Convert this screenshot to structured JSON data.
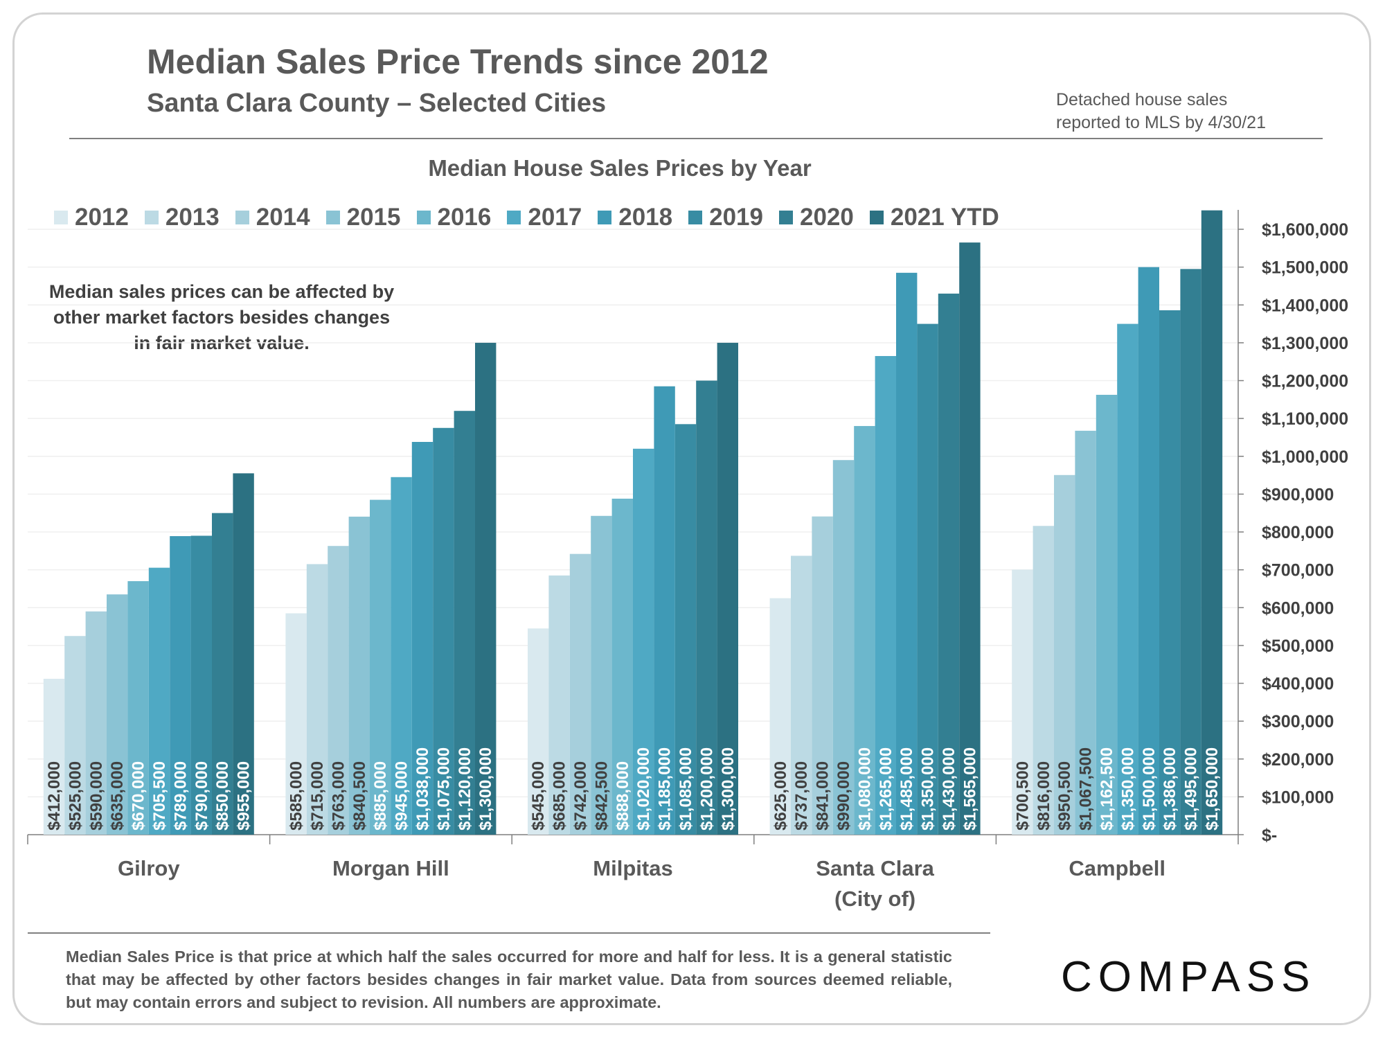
{
  "header": {
    "title": "Median Sales Price Trends since 2012",
    "subtitle": "Santa Clara County – Selected Cities",
    "source_note_line1": "Detached house sales",
    "source_note_line2": "reported to MLS by 4/30/21"
  },
  "annotation": {
    "line1": "Median sales prices can be affected by",
    "line2": "other market factors besides changes",
    "line3": "in fair market value."
  },
  "footnote": "Median Sales Price is that price at which half the sales occurred for more and half for less. It is a general statistic that may be affected by other factors besides changes in fair market value. Data from sources deemed reliable, but may contain errors and subject to revision.  All numbers are approximate.",
  "logo": {
    "text": "COMPASS"
  },
  "chart_data": {
    "type": "bar",
    "title": "Median House Sales Prices by Year",
    "xlabel": "",
    "ylabel": "",
    "ylim": [
      0,
      1600000
    ],
    "y_ticks": [
      0,
      100000,
      200000,
      300000,
      400000,
      500000,
      600000,
      700000,
      800000,
      900000,
      1000000,
      1100000,
      1200000,
      1300000,
      1400000,
      1500000,
      1600000
    ],
    "y_tick_labels": [
      "$-",
      "$100,000",
      "$200,000",
      "$300,000",
      "$400,000",
      "$500,000",
      "$600,000",
      "$700,000",
      "$800,000",
      "$900,000",
      "$1,000,000",
      "$1,100,000",
      "$1,200,000",
      "$1,300,000",
      "$1,400,000",
      "$1,500,000",
      "$1,600,000"
    ],
    "y_axis_side": "right",
    "grid": true,
    "legend_position": "top",
    "categories": [
      "Gilroy",
      "Morgan Hill",
      "Milpitas",
      "Santa Clara\n(City of)",
      "Campbell"
    ],
    "series": [
      {
        "name": "2012",
        "color": "#d9e9ef",
        "values": [
          412000,
          585000,
          545000,
          625000,
          700500
        ],
        "labels": [
          "$412,000",
          "$585,000",
          "$545,000",
          "$625,000",
          "$700,500"
        ]
      },
      {
        "name": "2013",
        "color": "#bcdae4",
        "values": [
          525000,
          715000,
          685000,
          737000,
          816000
        ],
        "labels": [
          "$525,000",
          "$715,000",
          "$685,000",
          "$737,000",
          "$816,000"
        ]
      },
      {
        "name": "2014",
        "color": "#a6cfdc",
        "values": [
          590000,
          763000,
          742000,
          841000,
          950500
        ],
        "labels": [
          "$590,000",
          "$763,000",
          "$742,000",
          "$841,000",
          "$950,500"
        ]
      },
      {
        "name": "2015",
        "color": "#8ac3d4",
        "values": [
          635000,
          840500,
          842500,
          990000,
          1067500
        ],
        "labels": [
          "$635,000",
          "$840,500",
          "$842,500",
          "$990,000",
          "$1,067,500"
        ]
      },
      {
        "name": "2016",
        "color": "#6cb7cc",
        "values": [
          670000,
          885000,
          888000,
          1080000,
          1162500
        ],
        "labels": [
          "$670,000",
          "$885,000",
          "$888,000",
          "$1,080,000",
          "$1,162,500"
        ]
      },
      {
        "name": "2017",
        "color": "#4fa9c4",
        "values": [
          705500,
          945000,
          1020000,
          1265000,
          1350000
        ],
        "labels": [
          "$705,500",
          "$945,000",
          "$1,020,000",
          "$1,265,000",
          "$1,350,000"
        ]
      },
      {
        "name": "2018",
        "color": "#3f9ab6",
        "values": [
          789000,
          1038000,
          1185000,
          1485000,
          1500000
        ],
        "labels": [
          "$789,000",
          "$1,038,000",
          "$1,185,000",
          "$1,485,000",
          "$1,500,000"
        ]
      },
      {
        "name": "2019",
        "color": "#388ca3",
        "values": [
          790000,
          1075000,
          1085000,
          1350000,
          1386000
        ],
        "labels": [
          "$790,000",
          "$1,075,000",
          "$1,085,000",
          "$1,350,000",
          "$1,386,000"
        ]
      },
      {
        "name": "2020",
        "color": "#337f92",
        "values": [
          850000,
          1120000,
          1200000,
          1430000,
          1495000
        ],
        "labels": [
          "$850,000",
          "$1,120,000",
          "$1,200,000",
          "$1,430,000",
          "$1,495,000"
        ]
      },
      {
        "name": "2021 YTD",
        "color": "#2c7182",
        "values": [
          955000,
          1300000,
          1300000,
          1565000,
          1650000
        ],
        "labels": [
          "$955,000",
          "$1,300,000",
          "$1,300,000",
          "$1,565,000",
          "$1,650,000"
        ]
      }
    ]
  }
}
